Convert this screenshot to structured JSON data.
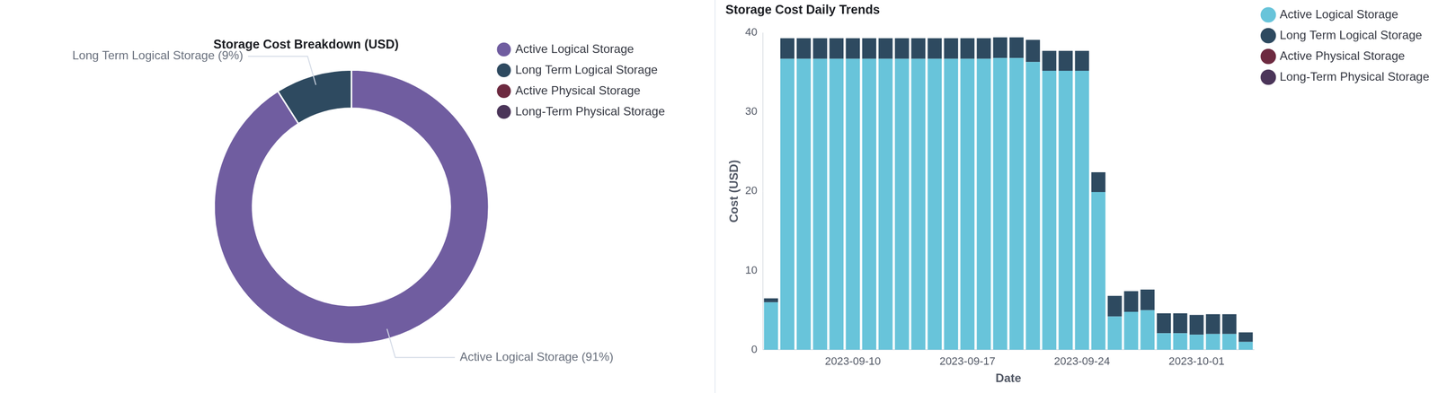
{
  "chart_data": [
    {
      "type": "doughnut",
      "title": "Storage Cost Breakdown (USD)",
      "categories": [
        "Active Logical Storage",
        "Long Term Logical Storage",
        "Active Physical Storage",
        "Long-Term Physical Storage"
      ],
      "values": [
        91,
        9,
        0,
        0
      ],
      "value_labels": [
        "Active Logical Storage (91%)",
        "Long Term Logical Storage (9%)",
        null,
        null
      ],
      "colors": [
        "#705da0",
        "#2e4a60",
        "#6d2a40",
        "#4b3559"
      ],
      "data_labels": true,
      "legend": "upper right"
    },
    {
      "type": "bar",
      "title": "Storage Cost Daily Trends",
      "x_label": "Date",
      "y_label": "Cost (USD)",
      "categories": [
        null,
        null,
        null,
        null,
        null,
        "2023-09-10",
        null,
        null,
        null,
        null,
        null,
        null,
        "2023-09-17",
        null,
        null,
        null,
        null,
        null,
        null,
        "2023-09-24",
        null,
        null,
        null,
        null,
        null,
        null,
        "2023-10-01",
        null,
        null,
        null
      ],
      "series": [
        {
          "name": "Active Logical Storage",
          "color": "#68c4da",
          "values": [
            6.0,
            36.7,
            36.7,
            36.7,
            36.7,
            36.7,
            36.7,
            36.7,
            36.7,
            36.7,
            36.7,
            36.7,
            36.7,
            36.7,
            36.8,
            36.8,
            36.3,
            35.2,
            35.2,
            35.2,
            19.9,
            4.2,
            4.8,
            5.0,
            2.1,
            2.1,
            1.9,
            2.0,
            2.0,
            1.0
          ]
        },
        {
          "name": "Long Term Logical Storage",
          "color": "#2e4a60",
          "values": [
            0.5,
            2.6,
            2.6,
            2.6,
            2.6,
            2.6,
            2.6,
            2.6,
            2.6,
            2.6,
            2.6,
            2.6,
            2.6,
            2.6,
            2.6,
            2.6,
            2.8,
            2.5,
            2.5,
            2.5,
            2.5,
            2.6,
            2.6,
            2.6,
            2.5,
            2.5,
            2.5,
            2.5,
            2.5,
            1.2
          ]
        },
        {
          "name": "Active Physical Storage",
          "color": "#6d2a40",
          "values": [
            0,
            0,
            0,
            0,
            0,
            0,
            0,
            0,
            0,
            0,
            0,
            0,
            0,
            0,
            0,
            0,
            0,
            0,
            0,
            0,
            0,
            0,
            0,
            0,
            0,
            0,
            0,
            0,
            0,
            0
          ]
        },
        {
          "name": "Long-Term Physical Storage",
          "color": "#4b3559",
          "values": [
            0,
            0,
            0,
            0,
            0,
            0,
            0,
            0,
            0,
            0,
            0,
            0,
            0,
            0,
            0,
            0,
            0,
            0,
            0,
            0,
            0,
            0,
            0,
            0,
            0,
            0,
            0,
            0,
            0,
            0
          ]
        }
      ],
      "stacked": true,
      "ylim": [
        0,
        40
      ],
      "yticks": [
        0,
        10,
        20,
        30,
        40
      ],
      "grid": false,
      "legend": "upper right"
    }
  ]
}
